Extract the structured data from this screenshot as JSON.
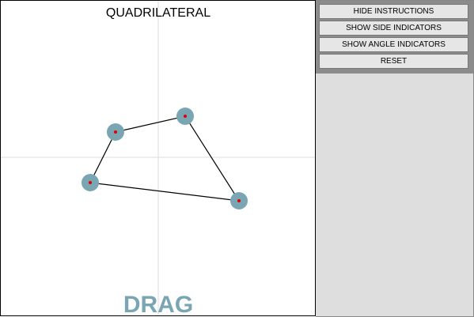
{
  "header": {
    "title": "QUADRILATERAL"
  },
  "buttons": [
    "HIDE INSTRUCTIONS",
    "SHOW SIDE INDICATORS",
    "SHOW ANGLE INDICATORS",
    "RESET"
  ],
  "hint": "DRAG"
}
